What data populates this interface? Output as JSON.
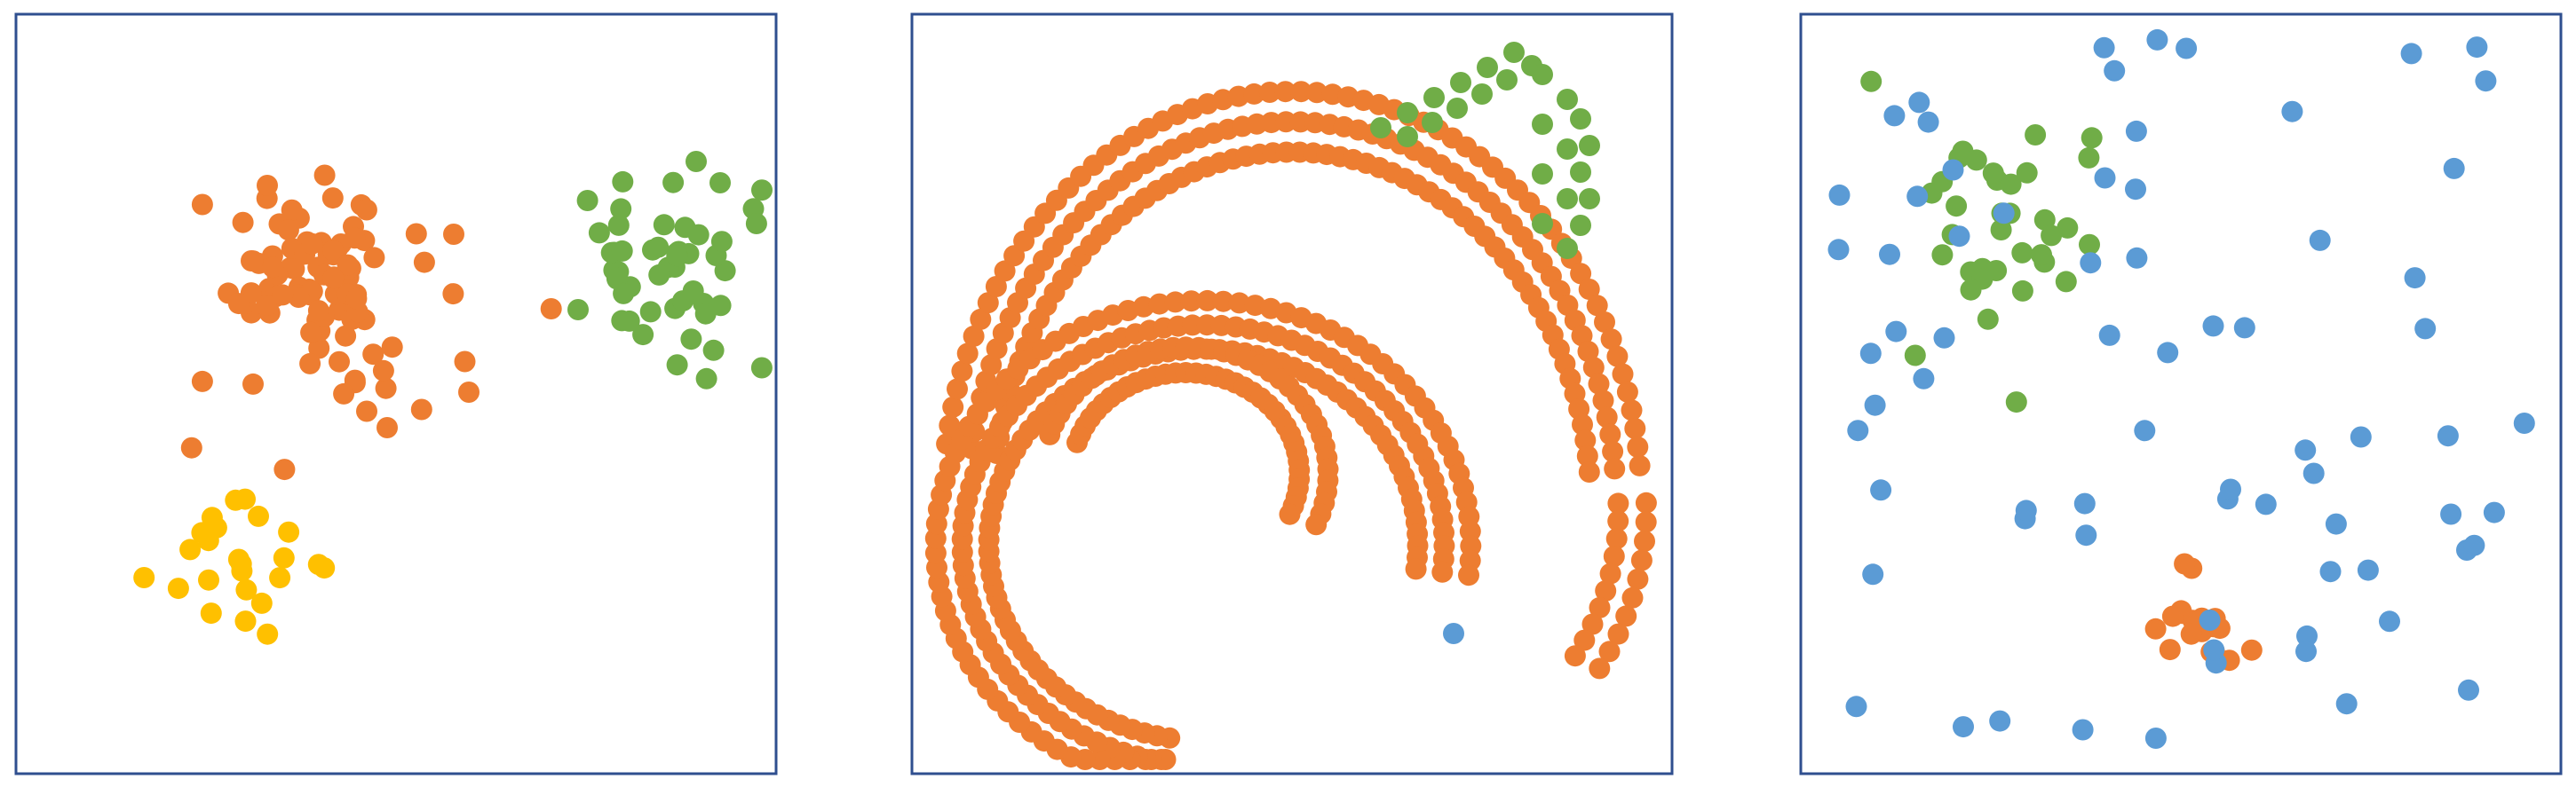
{
  "figure": {
    "colors": {
      "orange": "#ed7d31",
      "green": "#70ad47",
      "yellow": "#ffc000",
      "blue": "#5b9bd5",
      "frame": "#2f4f8f"
    }
  },
  "panels": [
    {
      "name": "blobs",
      "clusters": [
        {
          "name": "orange-cluster",
          "color": "orange"
        },
        {
          "name": "green-cluster",
          "color": "green"
        },
        {
          "name": "yellow-cluster",
          "color": "yellow"
        }
      ]
    },
    {
      "name": "spiral",
      "clusters": [
        {
          "name": "orange-spiral",
          "color": "orange"
        },
        {
          "name": "green-triangle",
          "color": "green"
        },
        {
          "name": "blue-outlier",
          "color": "blue"
        }
      ]
    },
    {
      "name": "noise",
      "clusters": [
        {
          "name": "green-cluster",
          "color": "green"
        },
        {
          "name": "orange-cluster",
          "color": "orange"
        },
        {
          "name": "blue-noise",
          "color": "blue"
        }
      ]
    }
  ]
}
